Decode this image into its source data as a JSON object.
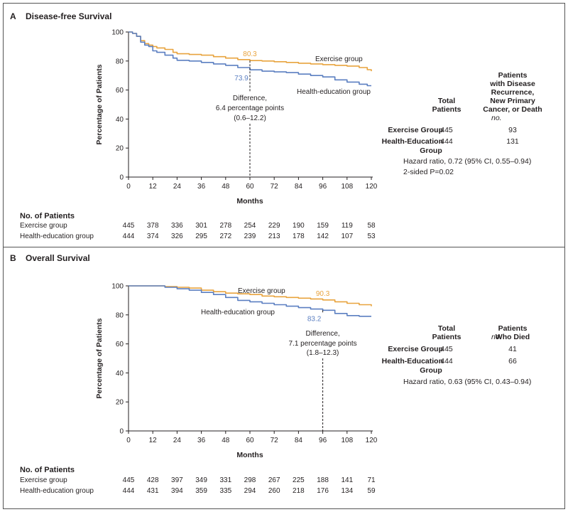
{
  "chart_data": [
    {
      "type": "line",
      "panel_letter": "A",
      "title": "Disease-free Survival",
      "xlabel": "Months",
      "ylabel": "Percentage of Patients",
      "xlim": [
        0,
        120
      ],
      "ylim": [
        0,
        100
      ],
      "xticks": [
        "0",
        "12",
        "24",
        "36",
        "48",
        "60",
        "72",
        "84",
        "96",
        "108",
        "120"
      ],
      "yticks": [
        "0",
        "20",
        "40",
        "60",
        "80",
        "100"
      ],
      "colors": {
        "exercise": "#e8a33d",
        "health": "#5b7fc1"
      },
      "series": [
        {
          "name": "Exercise group",
          "key": "exercise",
          "x": [
            0,
            2,
            4,
            6,
            8,
            10,
            12,
            14,
            18,
            22,
            24,
            30,
            36,
            42,
            48,
            54,
            60,
            66,
            72,
            78,
            84,
            90,
            96,
            102,
            108,
            114,
            118,
            120
          ],
          "y": [
            100,
            99,
            97,
            94,
            92,
            91,
            90,
            89,
            88,
            86,
            85,
            84.5,
            84,
            83,
            82,
            81,
            80.3,
            80,
            79.5,
            79,
            78.5,
            78,
            77.5,
            77,
            76.5,
            75.5,
            74,
            73
          ]
        },
        {
          "name": "Health-education group",
          "key": "health",
          "x": [
            0,
            2,
            4,
            6,
            8,
            10,
            12,
            14,
            18,
            22,
            24,
            30,
            36,
            42,
            48,
            54,
            60,
            66,
            72,
            78,
            84,
            90,
            96,
            102,
            108,
            114,
            118,
            120
          ],
          "y": [
            100,
            99,
            97,
            93,
            91,
            90,
            87,
            86,
            84,
            82,
            80.5,
            80,
            79,
            78,
            77,
            75.5,
            73.9,
            73,
            72.5,
            72,
            71,
            70,
            69,
            67,
            65.5,
            64,
            63,
            63
          ]
        }
      ],
      "series_labels": [
        "Exercise group",
        "Health-education group"
      ],
      "marker_x": 60,
      "marker_values": {
        "exercise": "80.3",
        "health": "73.9"
      },
      "difference_lines": [
        "Difference,",
        "6.4 percentage points",
        "(0.6–12.2)"
      ],
      "table": {
        "col1_header": [
          "Total",
          "Patients"
        ],
        "col2_header": [
          "Patients",
          "with Disease",
          "Recurrence,",
          "New Primary",
          "Cancer, or Death"
        ],
        "no_label": "no.",
        "rows": [
          {
            "label": [
              "Exercise Group"
            ],
            "total": "445",
            "events": "93"
          },
          {
            "label": [
              "Health-Education",
              "Group"
            ],
            "total": "444",
            "events": "131"
          }
        ],
        "footnotes": [
          "Hazard ratio, 0.72 (95% CI, 0.55–0.94)",
          "2-sided P=0.02"
        ]
      },
      "at_risk": {
        "title": "No. of Patients",
        "rows": [
          {
            "label": "Exercise group",
            "values": [
              "445",
              "378",
              "336",
              "301",
              "278",
              "254",
              "229",
              "190",
              "159",
              "119",
              "58"
            ]
          },
          {
            "label": "Health-education group",
            "values": [
              "444",
              "374",
              "326",
              "295",
              "272",
              "239",
              "213",
              "178",
              "142",
              "107",
              "53"
            ]
          }
        ]
      }
    },
    {
      "type": "line",
      "panel_letter": "B",
      "title": "Overall Survival",
      "xlabel": "Months",
      "ylabel": "Percentage of Patients",
      "xlim": [
        0,
        120
      ],
      "ylim": [
        0,
        100
      ],
      "xticks": [
        "0",
        "12",
        "24",
        "36",
        "48",
        "60",
        "72",
        "84",
        "96",
        "108",
        "120"
      ],
      "yticks": [
        "0",
        "20",
        "40",
        "60",
        "80",
        "100"
      ],
      "colors": {
        "exercise": "#e8a33d",
        "health": "#5b7fc1"
      },
      "series": [
        {
          "name": "Exercise group",
          "key": "exercise",
          "x": [
            0,
            6,
            12,
            18,
            24,
            30,
            36,
            42,
            48,
            54,
            60,
            66,
            72,
            78,
            84,
            90,
            96,
            102,
            108,
            114,
            120
          ],
          "y": [
            100,
            100,
            100,
            99.5,
            99,
            98.5,
            97,
            96,
            95,
            94.5,
            94,
            93,
            92.5,
            92,
            91.5,
            91,
            90.3,
            89,
            88,
            87,
            86
          ]
        },
        {
          "name": "Health-education group",
          "key": "health",
          "x": [
            0,
            6,
            12,
            18,
            24,
            30,
            36,
            42,
            48,
            54,
            60,
            66,
            72,
            78,
            84,
            90,
            96,
            102,
            108,
            114,
            120
          ],
          "y": [
            100,
            100,
            100,
            99,
            98,
            97,
            95.5,
            94,
            92,
            90,
            89,
            88,
            87,
            86,
            85,
            84,
            83.2,
            81,
            79.5,
            79,
            79
          ]
        }
      ],
      "series_labels": [
        "Exercise group",
        "Health-education group"
      ],
      "marker_x": 96,
      "marker_values": {
        "exercise": "90.3",
        "health": "83.2"
      },
      "difference_lines": [
        "Difference,",
        "7.1 percentage points",
        "(1.8–12.3)"
      ],
      "table": {
        "col1_header": [
          "Total",
          "Patients"
        ],
        "col2_header": [
          "Patients",
          "Who Died"
        ],
        "no_label": "no.",
        "rows": [
          {
            "label": [
              "Exercise Group"
            ],
            "total": "445",
            "events": "41"
          },
          {
            "label": [
              "Health-Education",
              "Group"
            ],
            "total": "444",
            "events": "66"
          }
        ],
        "footnotes": [
          "Hazard ratio, 0.63 (95% CI, 0.43–0.94)"
        ]
      },
      "at_risk": {
        "title": "No. of Patients",
        "rows": [
          {
            "label": "Exercise group",
            "values": [
              "445",
              "428",
              "397",
              "349",
              "331",
              "298",
              "267",
              "225",
              "188",
              "141",
              "71"
            ]
          },
          {
            "label": "Health-education group",
            "values": [
              "444",
              "431",
              "394",
              "359",
              "335",
              "294",
              "260",
              "218",
              "176",
              "134",
              "59"
            ]
          }
        ]
      }
    }
  ]
}
